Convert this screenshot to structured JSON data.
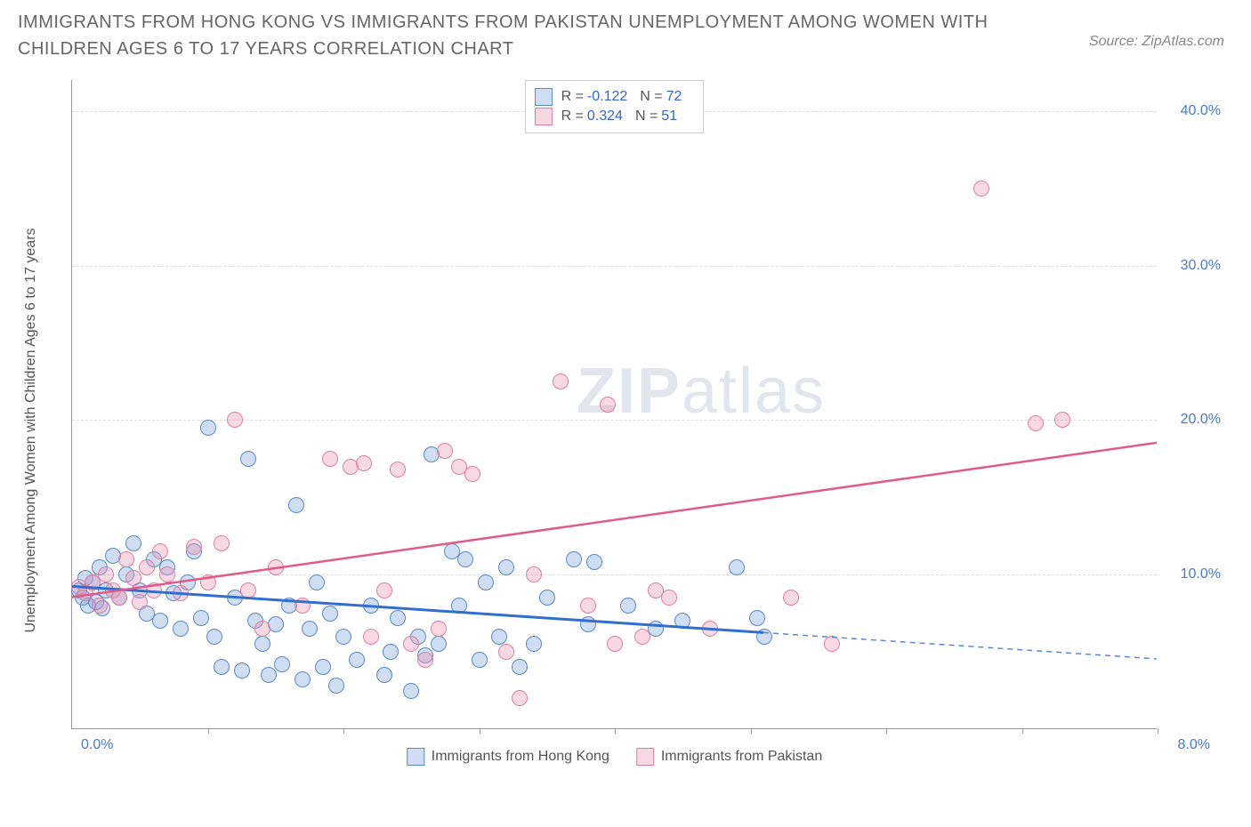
{
  "title": "IMMIGRANTS FROM HONG KONG VS IMMIGRANTS FROM PAKISTAN UNEMPLOYMENT AMONG WOMEN WITH CHILDREN AGES 6 TO 17 YEARS CORRELATION CHART",
  "source": "Source: ZipAtlas.com",
  "y_axis_label": "Unemployment Among Women with Children Ages 6 to 17 years",
  "watermark_bold": "ZIP",
  "watermark_light": "atlas",
  "chart": {
    "type": "scatter",
    "xlim": [
      0,
      8
    ],
    "ylim": [
      0,
      42
    ],
    "x_origin_label": "0.0%",
    "x_max_label": "8.0%",
    "y_ticks": [
      10,
      20,
      30,
      40
    ],
    "y_tick_labels": [
      "10.0%",
      "20.0%",
      "30.0%",
      "40.0%"
    ],
    "x_tick_positions": [
      1,
      2,
      3,
      4,
      5,
      6,
      7,
      8
    ],
    "background_color": "#ffffff",
    "grid_color": "#dddddd",
    "point_radius": 9,
    "point_stroke_width": 1.5,
    "series": [
      {
        "id": "hongkong",
        "label": "Immigrants from Hong Kong",
        "color_fill": "rgba(120, 160, 220, 0.35)",
        "color_stroke": "#5a8ac8",
        "R": "-0.122",
        "N": "72",
        "trend": {
          "x1": 0,
          "y1": 9.2,
          "x2": 5.1,
          "y2": 6.2,
          "solid_color": "#2f6fd0",
          "solid_width": 3
        },
        "trend_ext": {
          "x1": 5.1,
          "y1": 6.2,
          "x2": 8.0,
          "y2": 4.5,
          "dash_color": "#5a8ac8",
          "dash_width": 1.5
        },
        "points": [
          [
            0.05,
            9.0
          ],
          [
            0.08,
            8.5
          ],
          [
            0.1,
            9.8
          ],
          [
            0.12,
            8.0
          ],
          [
            0.15,
            9.5
          ],
          [
            0.18,
            8.2
          ],
          [
            0.2,
            10.5
          ],
          [
            0.22,
            7.8
          ],
          [
            0.25,
            9.0
          ],
          [
            0.3,
            11.2
          ],
          [
            0.35,
            8.5
          ],
          [
            0.4,
            10.0
          ],
          [
            0.45,
            12.0
          ],
          [
            0.5,
            9.0
          ],
          [
            0.55,
            7.5
          ],
          [
            0.6,
            11.0
          ],
          [
            0.65,
            7.0
          ],
          [
            0.7,
            10.5
          ],
          [
            0.75,
            8.8
          ],
          [
            0.8,
            6.5
          ],
          [
            0.85,
            9.5
          ],
          [
            0.9,
            11.5
          ],
          [
            0.95,
            7.2
          ],
          [
            1.0,
            19.5
          ],
          [
            1.05,
            6.0
          ],
          [
            1.1,
            4.0
          ],
          [
            1.2,
            8.5
          ],
          [
            1.25,
            3.8
          ],
          [
            1.3,
            17.5
          ],
          [
            1.35,
            7.0
          ],
          [
            1.4,
            5.5
          ],
          [
            1.45,
            3.5
          ],
          [
            1.5,
            6.8
          ],
          [
            1.55,
            4.2
          ],
          [
            1.6,
            8.0
          ],
          [
            1.65,
            14.5
          ],
          [
            1.7,
            3.2
          ],
          [
            1.75,
            6.5
          ],
          [
            1.8,
            9.5
          ],
          [
            1.85,
            4.0
          ],
          [
            1.9,
            7.5
          ],
          [
            1.95,
            2.8
          ],
          [
            2.0,
            6.0
          ],
          [
            2.1,
            4.5
          ],
          [
            2.2,
            8.0
          ],
          [
            2.3,
            3.5
          ],
          [
            2.35,
            5.0
          ],
          [
            2.4,
            7.2
          ],
          [
            2.5,
            2.5
          ],
          [
            2.55,
            6.0
          ],
          [
            2.6,
            4.8
          ],
          [
            2.65,
            17.8
          ],
          [
            2.7,
            5.5
          ],
          [
            2.8,
            11.5
          ],
          [
            2.85,
            8.0
          ],
          [
            2.9,
            11.0
          ],
          [
            3.0,
            4.5
          ],
          [
            3.05,
            9.5
          ],
          [
            3.15,
            6.0
          ],
          [
            3.2,
            10.5
          ],
          [
            3.3,
            4.0
          ],
          [
            3.4,
            5.5
          ],
          [
            3.5,
            8.5
          ],
          [
            3.7,
            11.0
          ],
          [
            3.8,
            6.8
          ],
          [
            3.85,
            10.8
          ],
          [
            4.1,
            8.0
          ],
          [
            4.3,
            6.5
          ],
          [
            4.5,
            7.0
          ],
          [
            4.9,
            10.5
          ],
          [
            5.05,
            7.2
          ],
          [
            5.1,
            6.0
          ]
        ]
      },
      {
        "id": "pakistan",
        "label": "Immigrants from Pakistan",
        "color_fill": "rgba(235, 145, 175, 0.35)",
        "color_stroke": "#dd7fa3",
        "R": "0.324",
        "N": "51",
        "trend": {
          "x1": 0,
          "y1": 8.5,
          "x2": 8.0,
          "y2": 18.5,
          "solid_color": "#e05a8a",
          "solid_width": 2.5
        },
        "points": [
          [
            0.05,
            9.2
          ],
          [
            0.1,
            8.8
          ],
          [
            0.15,
            9.5
          ],
          [
            0.2,
            8.0
          ],
          [
            0.25,
            10.0
          ],
          [
            0.3,
            9.0
          ],
          [
            0.35,
            8.5
          ],
          [
            0.4,
            11.0
          ],
          [
            0.45,
            9.8
          ],
          [
            0.5,
            8.2
          ],
          [
            0.55,
            10.5
          ],
          [
            0.6,
            9.0
          ],
          [
            0.65,
            11.5
          ],
          [
            0.7,
            10.0
          ],
          [
            0.8,
            8.8
          ],
          [
            0.9,
            11.8
          ],
          [
            1.0,
            9.5
          ],
          [
            1.1,
            12.0
          ],
          [
            1.2,
            20.0
          ],
          [
            1.3,
            9.0
          ],
          [
            1.4,
            6.5
          ],
          [
            1.5,
            10.5
          ],
          [
            1.7,
            8.0
          ],
          [
            1.9,
            17.5
          ],
          [
            2.05,
            17.0
          ],
          [
            2.15,
            17.2
          ],
          [
            2.2,
            6.0
          ],
          [
            2.3,
            9.0
          ],
          [
            2.4,
            16.8
          ],
          [
            2.5,
            5.5
          ],
          [
            2.6,
            4.5
          ],
          [
            2.7,
            6.5
          ],
          [
            2.75,
            18.0
          ],
          [
            2.85,
            17.0
          ],
          [
            2.95,
            16.5
          ],
          [
            3.2,
            5.0
          ],
          [
            3.3,
            2.0
          ],
          [
            3.4,
            10.0
          ],
          [
            3.6,
            22.5
          ],
          [
            3.8,
            8.0
          ],
          [
            3.95,
            21.0
          ],
          [
            4.0,
            5.5
          ],
          [
            4.2,
            6.0
          ],
          [
            4.3,
            9.0
          ],
          [
            4.4,
            8.5
          ],
          [
            4.7,
            6.5
          ],
          [
            5.3,
            8.5
          ],
          [
            5.6,
            5.5
          ],
          [
            6.7,
            35.0
          ],
          [
            7.1,
            19.8
          ],
          [
            7.3,
            20.0
          ]
        ]
      }
    ]
  },
  "legend_top_labels": {
    "R": "R =",
    "N": "N ="
  }
}
